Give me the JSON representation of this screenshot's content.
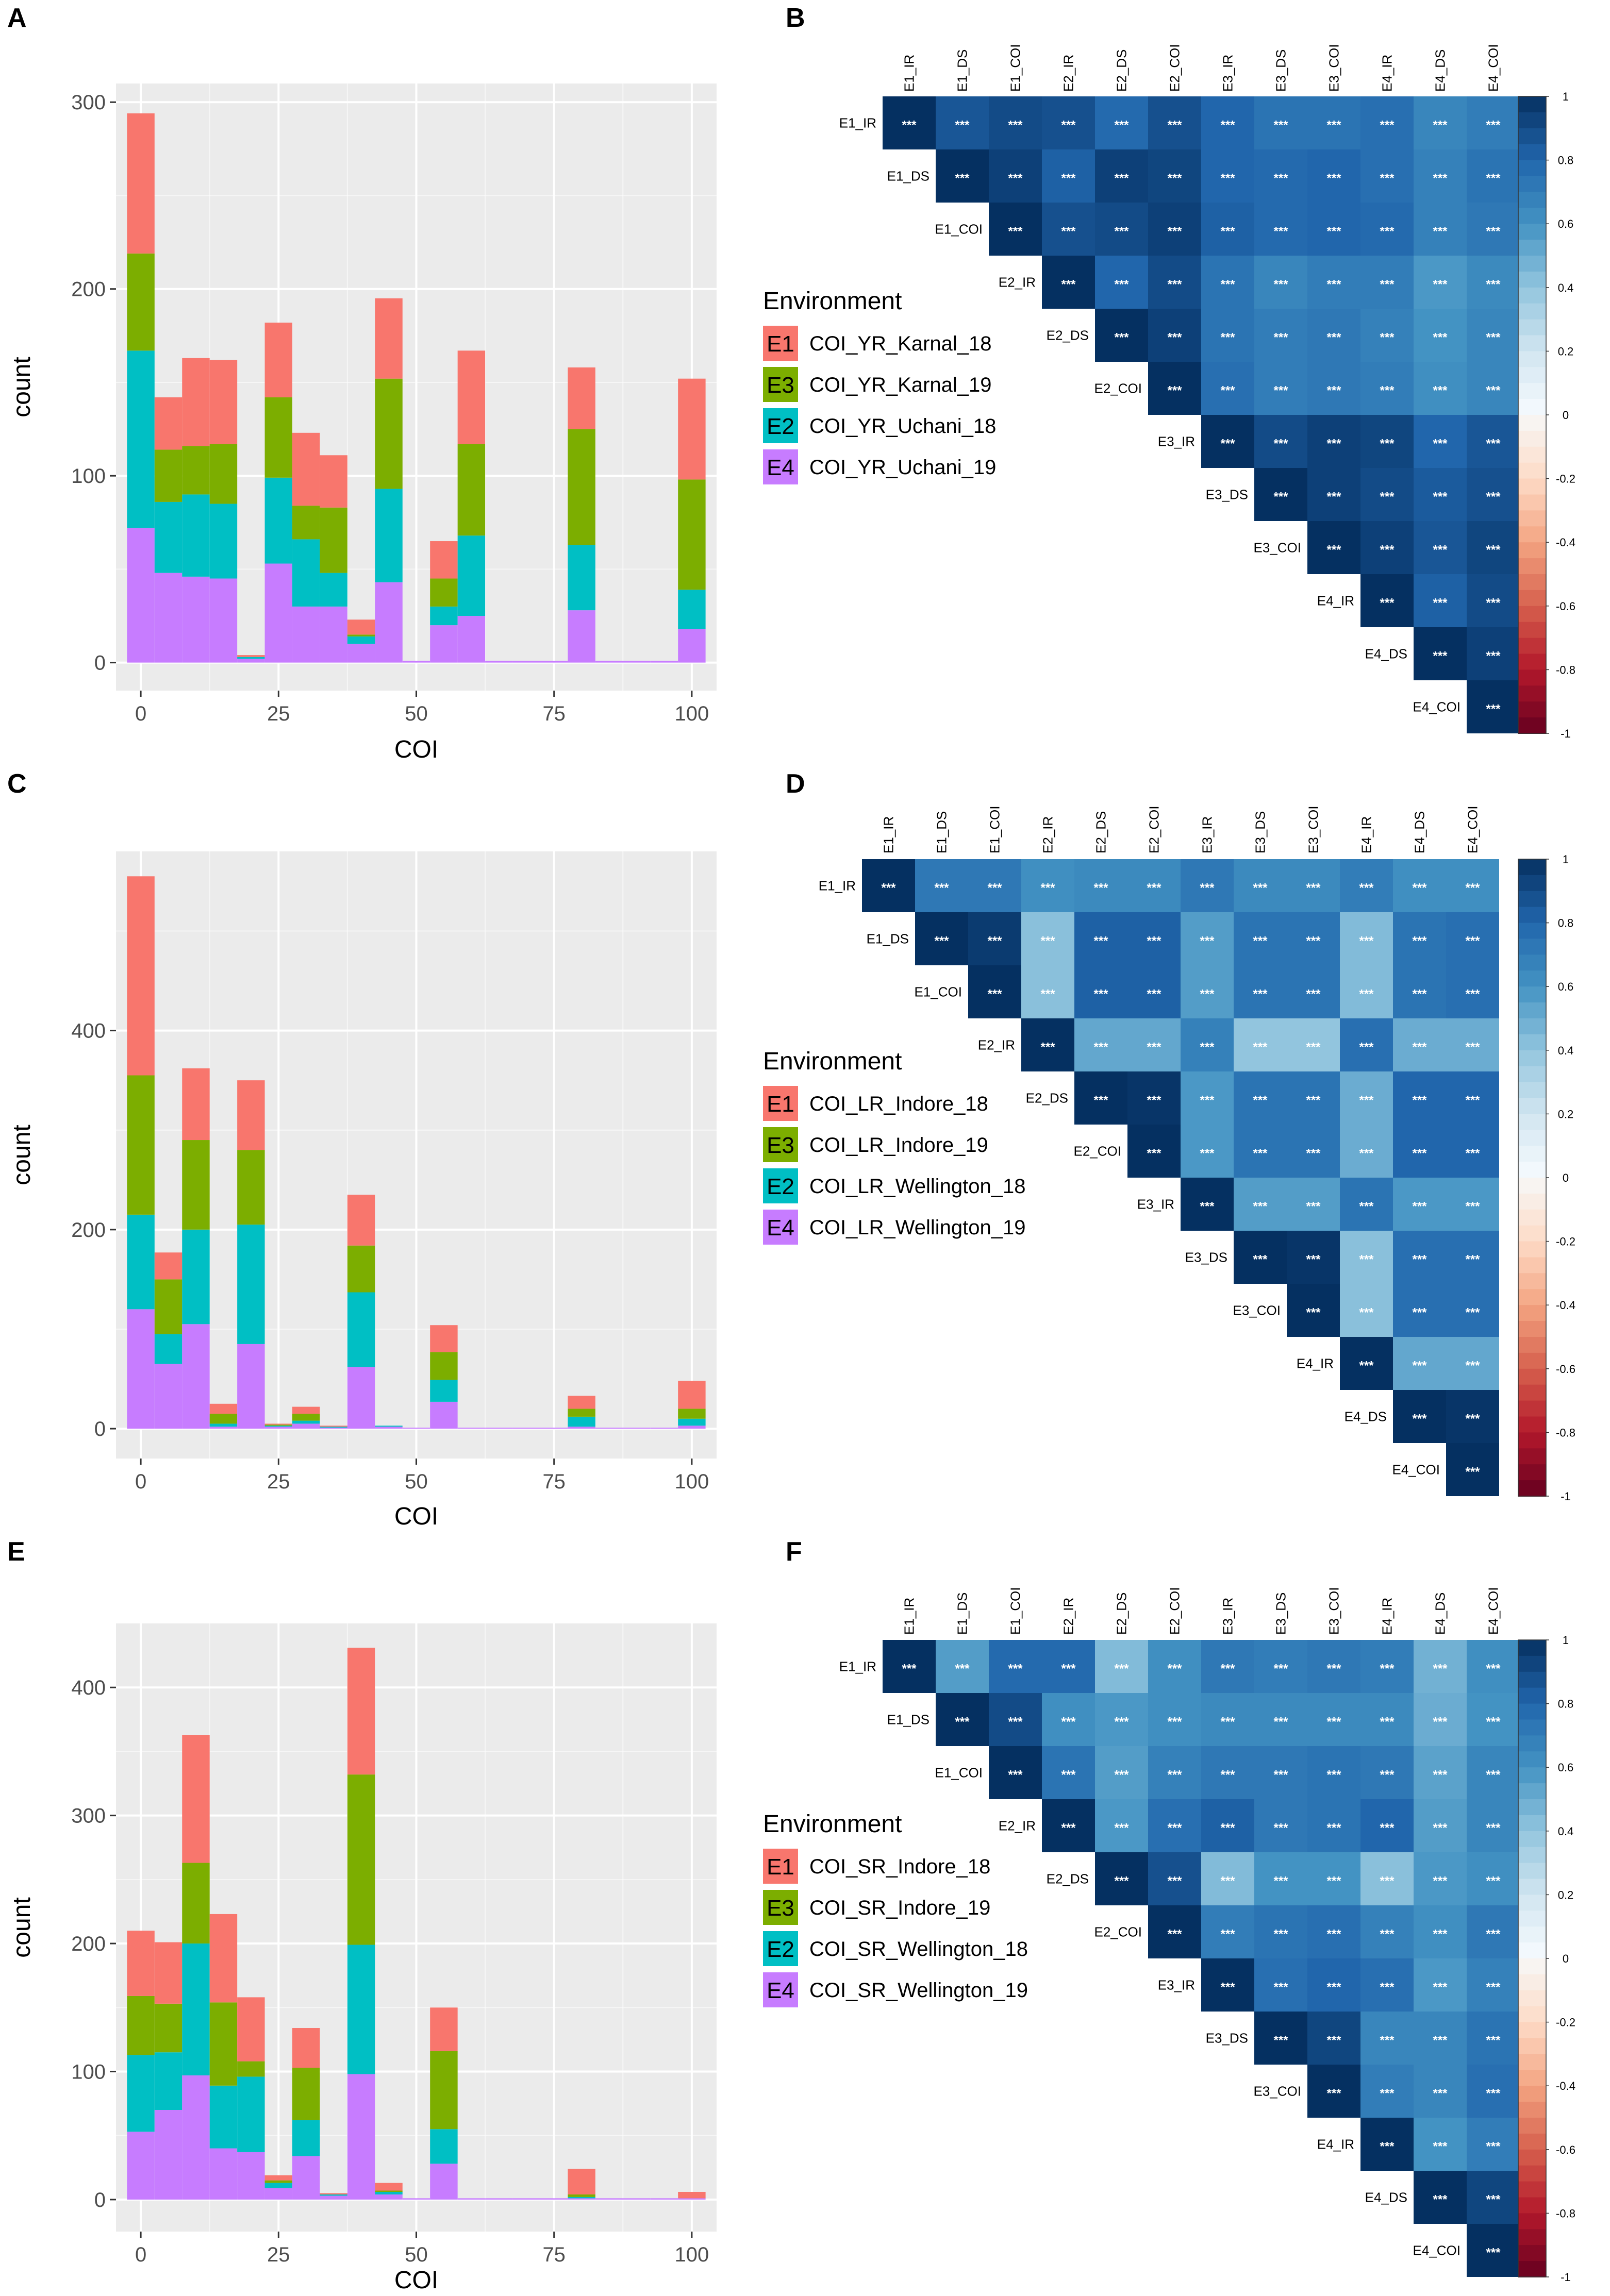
{
  "panels": {
    "A": "A",
    "B": "B",
    "C": "C",
    "D": "D",
    "E": "E",
    "F": "F"
  },
  "colors": {
    "E1": "#F8766D",
    "E3": "#7CAE00",
    "E2": "#00BFC4",
    "E4": "#C77CFF",
    "panel_bg": "#EBEBEB",
    "grid": "#FFFFFF"
  },
  "chart_data": [
    {
      "id": "A",
      "type": "bar",
      "stacked": true,
      "xlabel": "COI",
      "ylabel": "count",
      "xlim": [
        -4.5,
        104.5
      ],
      "ylim": [
        -15,
        310
      ],
      "xticks": [
        0,
        25,
        50,
        75,
        100
      ],
      "yticks": [
        0,
        100,
        200,
        300
      ],
      "bin_width": 5,
      "bin_centers": [
        0,
        5,
        10,
        15,
        20,
        25,
        30,
        35,
        40,
        45,
        50,
        55,
        60,
        65,
        70,
        75,
        80,
        85,
        90,
        95,
        100
      ],
      "legend_title": "Environment",
      "legend": [
        {
          "key": "E1",
          "label": "COI_YR_Karnal_18"
        },
        {
          "key": "E3",
          "label": "COI_YR_Karnal_19"
        },
        {
          "key": "E2",
          "label": "COI_YR_Uchani_18"
        },
        {
          "key": "E4",
          "label": "COI_YR_Uchani_19"
        }
      ],
      "series": [
        {
          "name": "E4",
          "values": [
            72,
            48,
            46,
            45,
            2,
            53,
            30,
            30,
            10,
            43,
            1,
            20,
            25,
            1,
            1,
            1,
            28,
            1,
            1,
            1,
            18
          ]
        },
        {
          "name": "E2",
          "values": [
            95,
            38,
            44,
            40,
            1,
            46,
            36,
            18,
            4,
            50,
            0,
            10,
            43,
            0,
            0,
            0,
            35,
            0,
            0,
            0,
            21
          ]
        },
        {
          "name": "E3",
          "values": [
            52,
            28,
            26,
            32,
            0,
            43,
            18,
            35,
            1,
            59,
            0,
            15,
            49,
            0,
            0,
            0,
            62,
            0,
            0,
            0,
            59
          ]
        },
        {
          "name": "E1",
          "values": [
            75,
            28,
            47,
            45,
            1,
            40,
            39,
            28,
            8,
            43,
            0,
            20,
            50,
            0,
            0,
            0,
            33,
            0,
            0,
            0,
            54
          ]
        }
      ]
    },
    {
      "id": "C",
      "type": "bar",
      "stacked": true,
      "xlabel": "COI",
      "ylabel": "count",
      "xlim": [
        -4.5,
        104.5
      ],
      "ylim": [
        -30,
        580
      ],
      "xticks": [
        0,
        25,
        50,
        75,
        100
      ],
      "yticks": [
        0,
        200,
        400
      ],
      "bin_width": 5,
      "bin_centers": [
        0,
        5,
        10,
        15,
        20,
        25,
        30,
        35,
        40,
        45,
        50,
        55,
        60,
        65,
        70,
        75,
        80,
        85,
        90,
        95,
        100
      ],
      "legend_title": "Environment",
      "legend": [
        {
          "key": "E1",
          "label": "COI_LR_Indore_18"
        },
        {
          "key": "E3",
          "label": "COI_LR_Indore_19"
        },
        {
          "key": "E2",
          "label": "COI_LR_Wellington_18"
        },
        {
          "key": "E4",
          "label": "COI_LR_Wellington_19"
        }
      ],
      "series": [
        {
          "name": "E4",
          "values": [
            120,
            65,
            105,
            2,
            85,
            2,
            5,
            1,
            62,
            2,
            1,
            27,
            1,
            1,
            1,
            1,
            2,
            1,
            1,
            1,
            3
          ]
        },
        {
          "name": "E2",
          "values": [
            95,
            30,
            95,
            3,
            120,
            1,
            3,
            1,
            75,
            1,
            0,
            22,
            0,
            0,
            0,
            0,
            10,
            0,
            0,
            0,
            7
          ]
        },
        {
          "name": "E3",
          "values": [
            140,
            55,
            90,
            10,
            75,
            1,
            7,
            0,
            47,
            0,
            0,
            28,
            0,
            0,
            0,
            0,
            8,
            0,
            0,
            0,
            10
          ]
        },
        {
          "name": "E1",
          "values": [
            200,
            27,
            72,
            10,
            70,
            1,
            7,
            1,
            51,
            0,
            0,
            27,
            0,
            0,
            0,
            0,
            13,
            0,
            0,
            0,
            28
          ]
        }
      ]
    },
    {
      "id": "E",
      "type": "bar",
      "stacked": true,
      "xlabel": "COI",
      "ylabel": "count",
      "xlim": [
        -4.5,
        104.5
      ],
      "ylim": [
        -25,
        450
      ],
      "xticks": [
        0,
        25,
        50,
        75,
        100
      ],
      "yticks": [
        0,
        100,
        200,
        300,
        400
      ],
      "bin_width": 5,
      "bin_centers": [
        0,
        5,
        10,
        15,
        20,
        25,
        30,
        35,
        40,
        45,
        50,
        55,
        60,
        65,
        70,
        75,
        80,
        85,
        90,
        95,
        100
      ],
      "legend_title": "Environment",
      "legend": [
        {
          "key": "E1",
          "label": "COI_SR_Indore_18"
        },
        {
          "key": "E3",
          "label": "COI_SR_Indore_19"
        },
        {
          "key": "E2",
          "label": "COI_SR_Wellington_18"
        },
        {
          "key": "E4",
          "label": "COI_SR_Wellington_19"
        }
      ],
      "series": [
        {
          "name": "E4",
          "values": [
            53,
            70,
            97,
            40,
            37,
            9,
            34,
            3,
            98,
            4,
            1,
            28,
            1,
            1,
            1,
            1,
            1,
            1,
            1,
            1,
            1
          ]
        },
        {
          "name": "E2",
          "values": [
            60,
            45,
            103,
            49,
            59,
            4,
            28,
            1,
            101,
            2,
            0,
            27,
            0,
            0,
            0,
            0,
            1,
            0,
            0,
            0,
            0
          ]
        },
        {
          "name": "E3",
          "values": [
            46,
            38,
            63,
            65,
            12,
            2,
            41,
            0,
            133,
            1,
            0,
            61,
            0,
            0,
            0,
            0,
            2,
            0,
            0,
            0,
            0
          ]
        },
        {
          "name": "E1",
          "values": [
            51,
            48,
            100,
            69,
            50,
            4,
            31,
            1,
            99,
            6,
            0,
            34,
            0,
            0,
            0,
            0,
            20,
            0,
            0,
            0,
            5
          ]
        }
      ]
    },
    {
      "id": "B",
      "type": "heatmap",
      "labels": [
        "E1_IR",
        "E1_DS",
        "E1_COI",
        "E2_IR",
        "E2_DS",
        "E2_COI",
        "E3_IR",
        "E3_DS",
        "E3_COI",
        "E4_IR",
        "E4_DS",
        "E4_COI"
      ],
      "significance": "***",
      "colorbar": {
        "min": -1,
        "max": 1,
        "ticks": [
          "1",
          "0.8",
          "0.6",
          "0.4",
          "0.2",
          "0",
          "-0.2",
          "-0.4",
          "-0.6",
          "-0.8",
          "-1"
        ]
      },
      "matrix": [
        [
          1.0,
          0.86,
          0.9,
          0.88,
          0.78,
          0.88,
          0.8,
          0.74,
          0.74,
          0.76,
          0.66,
          0.7
        ],
        [
          null,
          1.0,
          0.94,
          0.82,
          0.94,
          0.92,
          0.8,
          0.78,
          0.8,
          0.76,
          0.68,
          0.74
        ],
        [
          null,
          null,
          1.0,
          0.88,
          0.9,
          0.94,
          0.82,
          0.78,
          0.8,
          0.78,
          0.68,
          0.72
        ],
        [
          null,
          null,
          null,
          1.0,
          0.8,
          0.9,
          0.74,
          0.66,
          0.7,
          0.7,
          0.58,
          0.64
        ],
        [
          null,
          null,
          null,
          null,
          1.0,
          0.94,
          0.74,
          0.7,
          0.72,
          0.68,
          0.6,
          0.66
        ],
        [
          null,
          null,
          null,
          null,
          null,
          1.0,
          0.76,
          0.7,
          0.72,
          0.7,
          0.62,
          0.66
        ],
        [
          null,
          null,
          null,
          null,
          null,
          null,
          1.0,
          0.9,
          0.94,
          0.92,
          0.8,
          0.86
        ],
        [
          null,
          null,
          null,
          null,
          null,
          null,
          null,
          1.0,
          0.94,
          0.9,
          0.84,
          0.88
        ],
        [
          null,
          null,
          null,
          null,
          null,
          null,
          null,
          null,
          1.0,
          0.94,
          0.86,
          0.92
        ],
        [
          null,
          null,
          null,
          null,
          null,
          null,
          null,
          null,
          null,
          1.0,
          0.82,
          0.9
        ],
        [
          null,
          null,
          null,
          null,
          null,
          null,
          null,
          null,
          null,
          null,
          1.0,
          0.94
        ],
        [
          null,
          null,
          null,
          null,
          null,
          null,
          null,
          null,
          null,
          null,
          null,
          1.0
        ]
      ]
    },
    {
      "id": "D",
      "type": "heatmap",
      "labels": [
        "E1_IR",
        "E1_DS",
        "E1_COI",
        "E2_IR",
        "E2_DS",
        "E2_COI",
        "E3_IR",
        "E3_DS",
        "E3_COI",
        "E4_IR",
        "E4_DS",
        "E4_COI"
      ],
      "significance": "***",
      "colorbar": {
        "min": -1,
        "max": 1,
        "ticks": [
          "1",
          "0.8",
          "0.6",
          "0.4",
          "0.2",
          "0",
          "-0.2",
          "-0.4",
          "-0.6",
          "-0.8",
          "-1"
        ]
      },
      "matrix": [
        [
          1.0,
          0.72,
          0.72,
          0.62,
          0.64,
          0.64,
          0.72,
          0.64,
          0.64,
          0.7,
          0.62,
          0.62
        ],
        [
          null,
          1.0,
          0.96,
          0.42,
          0.82,
          0.82,
          0.56,
          0.74,
          0.74,
          0.44,
          0.74,
          0.76
        ],
        [
          null,
          null,
          1.0,
          0.42,
          0.82,
          0.82,
          0.56,
          0.74,
          0.74,
          0.44,
          0.74,
          0.76
        ],
        [
          null,
          null,
          null,
          1.0,
          0.52,
          0.52,
          0.68,
          0.4,
          0.4,
          0.76,
          0.5,
          0.5
        ],
        [
          null,
          null,
          null,
          null,
          1.0,
          0.98,
          0.58,
          0.74,
          0.74,
          0.5,
          0.8,
          0.8
        ],
        [
          null,
          null,
          null,
          null,
          null,
          1.0,
          0.58,
          0.74,
          0.74,
          0.5,
          0.8,
          0.8
        ],
        [
          null,
          null,
          null,
          null,
          null,
          null,
          1.0,
          0.56,
          0.56,
          0.74,
          0.58,
          0.58
        ],
        [
          null,
          null,
          null,
          null,
          null,
          null,
          null,
          1.0,
          0.98,
          0.42,
          0.76,
          0.76
        ],
        [
          null,
          null,
          null,
          null,
          null,
          null,
          null,
          null,
          1.0,
          0.42,
          0.76,
          0.76
        ],
        [
          null,
          null,
          null,
          null,
          null,
          null,
          null,
          null,
          null,
          1.0,
          0.52,
          0.52
        ],
        [
          null,
          null,
          null,
          null,
          null,
          null,
          null,
          null,
          null,
          null,
          1.0,
          0.98
        ],
        [
          null,
          null,
          null,
          null,
          null,
          null,
          null,
          null,
          null,
          null,
          null,
          1.0
        ]
      ]
    },
    {
      "id": "F",
      "type": "heatmap",
      "labels": [
        "E1_IR",
        "E1_DS",
        "E1_COI",
        "E2_IR",
        "E2_DS",
        "E2_COI",
        "E3_IR",
        "E3_DS",
        "E3_COI",
        "E4_IR",
        "E4_DS",
        "E4_COI"
      ],
      "significance": "***",
      "colorbar": {
        "min": -1,
        "max": 1,
        "ticks": [
          "1",
          "0.8",
          "0.6",
          "0.4",
          "0.2",
          "0",
          "-0.2",
          "-0.4",
          "-0.6",
          "-0.8",
          "-1"
        ]
      },
      "matrix": [
        [
          1.0,
          0.56,
          0.78,
          0.78,
          0.44,
          0.62,
          0.72,
          0.7,
          0.72,
          0.7,
          0.48,
          0.62
        ],
        [
          null,
          1.0,
          0.9,
          0.62,
          0.58,
          0.62,
          0.64,
          0.64,
          0.64,
          0.64,
          0.5,
          0.6
        ],
        [
          null,
          null,
          1.0,
          0.74,
          0.56,
          0.68,
          0.72,
          0.72,
          0.74,
          0.72,
          0.54,
          0.66
        ],
        [
          null,
          null,
          null,
          1.0,
          0.58,
          0.76,
          0.82,
          0.72,
          0.74,
          0.8,
          0.56,
          0.66
        ],
        [
          null,
          null,
          null,
          null,
          1.0,
          0.88,
          0.44,
          0.6,
          0.6,
          0.42,
          0.58,
          0.62
        ],
        [
          null,
          null,
          null,
          null,
          null,
          1.0,
          0.7,
          0.74,
          0.76,
          0.68,
          0.62,
          0.72
        ],
        [
          null,
          null,
          null,
          null,
          null,
          null,
          1.0,
          0.76,
          0.8,
          0.76,
          0.58,
          0.68
        ],
        [
          null,
          null,
          null,
          null,
          null,
          null,
          null,
          1.0,
          0.92,
          0.66,
          0.66,
          0.74
        ],
        [
          null,
          null,
          null,
          null,
          null,
          null,
          null,
          null,
          1.0,
          0.7,
          0.66,
          0.76
        ],
        [
          null,
          null,
          null,
          null,
          null,
          null,
          null,
          null,
          null,
          1.0,
          0.6,
          0.7
        ],
        [
          null,
          null,
          null,
          null,
          null,
          null,
          null,
          null,
          null,
          null,
          1.0,
          0.92
        ],
        [
          null,
          null,
          null,
          null,
          null,
          null,
          null,
          null,
          null,
          null,
          null,
          1.0
        ]
      ]
    }
  ]
}
